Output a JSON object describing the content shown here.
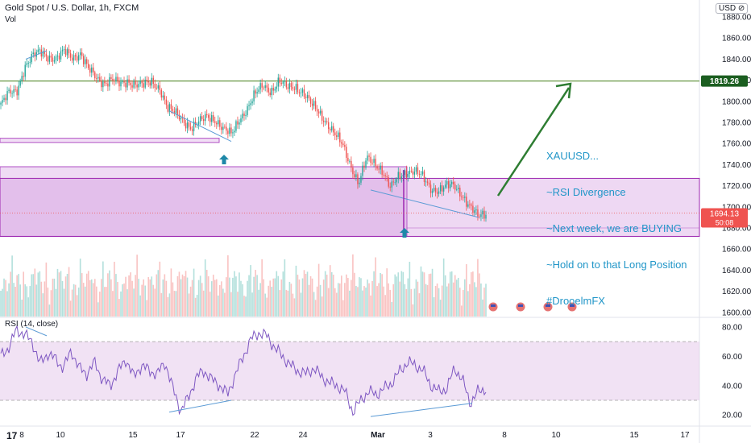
{
  "header": {
    "symbol_title": "Gold Spot / U.S. Dollar, 1h, FXCM",
    "volume_label": "Vol",
    "currency_badge": "USD ⊘"
  },
  "note": {
    "lines": [
      "XAUUSD...",
      "~RSI Divergence",
      "~Next week, we are BUYING",
      "~Hold on to that Long Position",
      "#DrooelmFX"
    ]
  },
  "colors": {
    "up": "#26a69a",
    "down": "#ef5350",
    "zone": "#c77fd6",
    "rsi": "#7e57c2",
    "divergence": "#5b9bd5",
    "arrow": "#2e7d32",
    "level": "#558b2f",
    "note": "#2196c8"
  },
  "chart_data": [
    {
      "type": "candlestick",
      "pane": "price",
      "title": "Gold Spot / U.S. Dollar, 1h, FXCM",
      "y_axis": {
        "ticks": [
          1600,
          1620,
          1640,
          1660,
          1680,
          1700,
          1720,
          1740,
          1760,
          1780,
          1800,
          1820,
          1840,
          1860,
          1880
        ],
        "range": [
          1596,
          1893
        ]
      },
      "x_axis": {
        "ticks": [
          "8",
          "10",
          "15",
          "17",
          "22",
          "24",
          "Mar",
          "3",
          "8",
          "10",
          "15",
          "17"
        ]
      },
      "close_path": [
        1797,
        1807,
        1810,
        1833,
        1842,
        1847,
        1843,
        1840,
        1847,
        1842,
        1846,
        1830,
        1822,
        1818,
        1821,
        1815,
        1819,
        1817,
        1815,
        1818,
        1813,
        1793,
        1788,
        1782,
        1775,
        1780,
        1786,
        1783,
        1773,
        1768,
        1784,
        1793,
        1806,
        1816,
        1810,
        1818,
        1813,
        1815,
        1808,
        1797,
        1790,
        1780,
        1768,
        1758,
        1740,
        1722,
        1745,
        1742,
        1735,
        1717,
        1728,
        1734,
        1734,
        1728,
        1718,
        1716,
        1719,
        1720,
        1712,
        1700,
        1690,
        1694
      ],
      "last_price": {
        "label": "1694.13",
        "sublabel": "50:08",
        "value": 1694.13
      },
      "horizontal_level": {
        "label": "1819.26",
        "value": 1819.26
      },
      "zones": [
        {
          "name": "small-supply-strip",
          "from": 1761,
          "to": 1765
        },
        {
          "name": "main-demand-zone",
          "from": 1672,
          "to": 1738
        },
        {
          "name": "inner-zone",
          "from": 1672,
          "to": 1727
        }
      ],
      "annotation_arrow_target_value": 1822
    },
    {
      "type": "bar",
      "pane": "volume",
      "title": "Vol"
    },
    {
      "type": "line",
      "pane": "rsi",
      "title": "RSI (14, close)",
      "y_axis": {
        "ticks": [
          20,
          40,
          60,
          80
        ],
        "range": [
          13,
          86
        ]
      },
      "band": [
        30,
        70
      ],
      "values": [
        60,
        66,
        78,
        75,
        70,
        55,
        62,
        58,
        52,
        64,
        52,
        48,
        56,
        44,
        40,
        50,
        58,
        46,
        54,
        50,
        48,
        56,
        38,
        23,
        32,
        46,
        50,
        44,
        40,
        34,
        48,
        60,
        72,
        76,
        74,
        66,
        60,
        54,
        50,
        48,
        52,
        46,
        42,
        40,
        36,
        22,
        30,
        36,
        34,
        38,
        42,
        50,
        56,
        54,
        50,
        40,
        36,
        38,
        52,
        44,
        28,
        36,
        38
      ]
    }
  ]
}
